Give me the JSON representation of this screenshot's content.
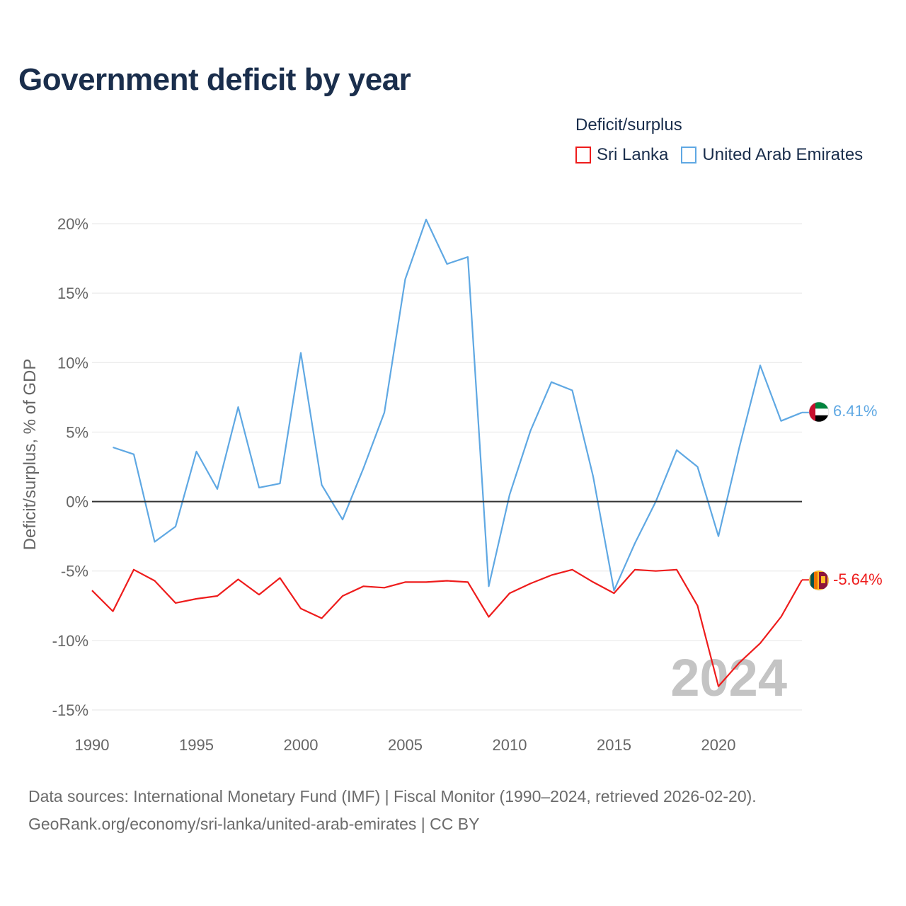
{
  "title": "Government deficit by year",
  "legend": {
    "title": "Deficit/surplus",
    "items": [
      "Sri Lanka",
      "United Arab Emirates"
    ]
  },
  "colors": {
    "sri_lanka": "#ee1c1c",
    "uae": "#5fa8e3",
    "zero_line": "#333333",
    "grid": "#e6e6e6"
  },
  "year_watermark": "2024",
  "source": {
    "line1": "Data sources: International Monetary Fund (IMF) | Fiscal Monitor (1990–2024, retrieved 2026-02-20).",
    "line2": "GeoRank.org/economy/sri-lanka/united-arab-emirates | CC BY"
  },
  "chart_data": {
    "type": "line",
    "title": "Government deficit by year",
    "xlabel": "",
    "ylabel": "Deficit/surplus, % of GDP",
    "xlim": [
      1990,
      2024
    ],
    "ylim": [
      -15,
      20
    ],
    "x_ticks": [
      "1990",
      "1995",
      "2000",
      "2005",
      "2010",
      "2015",
      "2020"
    ],
    "x_tick_values": [
      1990,
      1995,
      2000,
      2005,
      2010,
      2015,
      2020
    ],
    "y_ticks": [
      "20%",
      "15%",
      "10%",
      "5%",
      "0%",
      "-5%",
      "-10%",
      "-15%"
    ],
    "y_tick_values": [
      20,
      15,
      10,
      5,
      0,
      -5,
      -10,
      -15
    ],
    "grid": true,
    "legend_position": "top-right",
    "series": [
      {
        "name": "Sri Lanka",
        "color": "#ee1c1c",
        "end_label": "-5.64%",
        "x": [
          1990,
          1991,
          1992,
          1993,
          1994,
          1995,
          1996,
          1997,
          1998,
          1999,
          2000,
          2001,
          2002,
          2003,
          2004,
          2005,
          2006,
          2007,
          2008,
          2009,
          2010,
          2011,
          2012,
          2013,
          2014,
          2015,
          2016,
          2017,
          2018,
          2019,
          2020,
          2021,
          2022,
          2023,
          2024
        ],
        "values": [
          -6.4,
          -7.9,
          -4.9,
          -5.7,
          -7.3,
          -7.0,
          -6.8,
          -5.6,
          -6.7,
          -5.5,
          -7.7,
          -8.4,
          -6.8,
          -6.1,
          -6.2,
          -5.8,
          -5.8,
          -5.7,
          -5.8,
          -8.3,
          -6.6,
          -5.9,
          -5.3,
          -4.9,
          -5.8,
          -6.6,
          -4.9,
          -5.0,
          -4.9,
          -7.5,
          -13.3,
          -11.6,
          -10.2,
          -8.3,
          -5.64
        ]
      },
      {
        "name": "United Arab Emirates",
        "color": "#5fa8e3",
        "end_label": "6.41%",
        "x": [
          1991,
          1992,
          1993,
          1994,
          1995,
          1996,
          1997,
          1998,
          1999,
          2000,
          2001,
          2002,
          2003,
          2004,
          2005,
          2006,
          2007,
          2008,
          2009,
          2010,
          2011,
          2012,
          2013,
          2014,
          2015,
          2016,
          2017,
          2018,
          2019,
          2020,
          2021,
          2022,
          2023,
          2024
        ],
        "values": [
          3.9,
          3.4,
          -2.9,
          -1.8,
          3.6,
          0.9,
          6.8,
          1.0,
          1.3,
          10.7,
          1.2,
          -1.3,
          2.4,
          6.4,
          16.0,
          20.3,
          17.1,
          17.6,
          -6.1,
          0.5,
          5.1,
          8.6,
          8.0,
          1.8,
          -6.4,
          -3.0,
          0.0,
          3.7,
          2.5,
          -2.5,
          3.9,
          9.8,
          5.8,
          6.41
        ]
      }
    ]
  }
}
